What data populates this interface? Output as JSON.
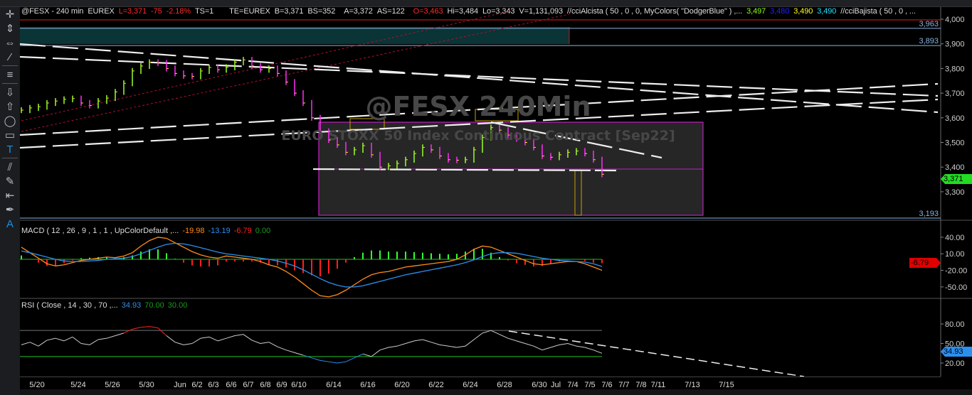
{
  "header": {
    "symbol": "@FESX - 240 min",
    "exchange": "EUREX",
    "last": "L=3,371",
    "change": "-75",
    "change_pct": "-2.18%",
    "ts": "TS=1",
    "te": "TE=EUREX",
    "bid": "B=3,371",
    "bid_size": "BS=352",
    "ask": "A=3,372",
    "ask_size": "AS=122",
    "open": "O=3,463",
    "high": "Hi=3,484",
    "low": "Lo=3,343",
    "volume": "V=1,131,093",
    "cci_alc": "//cciAlcista ( 50 , 0 , 0, MyColors( \"DodgerBlue\" ) ,...",
    "cci_v1": "3,497",
    "cci_v2": "3,480",
    "cci_v3": "3,490",
    "cci_v4": "3,490",
    "cci_baj": "//cciBajista ( 50 , 0 , ..."
  },
  "watermark": {
    "title": "@FESX 240Min",
    "subtitle": "EURO STOXX 50 Index Continuous Contract [Sep22]"
  },
  "toolbar": [
    {
      "icon": "crosshair-icon",
      "g": "✛"
    },
    {
      "icon": "vertical-resize-icon",
      "g": "⇕"
    },
    {
      "icon": "horizontal-resize-icon",
      "g": "⇔"
    },
    {
      "icon": "trendline-pen-icon",
      "g": "⁄"
    },
    {
      "sep": true
    },
    {
      "icon": "horizontal-lines-icon",
      "g": "≡"
    },
    {
      "sep": true
    },
    {
      "icon": "arrow-down-icon",
      "g": "⇩"
    },
    {
      "icon": "arrow-up-icon",
      "g": "⇧"
    },
    {
      "icon": "ellipse-icon",
      "g": "◯"
    },
    {
      "icon": "rectangle-icon",
      "g": "▭"
    },
    {
      "icon": "text-icon",
      "g": "T",
      "blue": true
    },
    {
      "sep": true
    },
    {
      "icon": "parallel-lines-icon",
      "g": "⫽"
    },
    {
      "icon": "delete-drawings-icon",
      "g": "✎"
    },
    {
      "icon": "align-left-icon",
      "g": "⇤"
    },
    {
      "icon": "pen-icon",
      "g": "✒"
    },
    {
      "icon": "text-label-icon",
      "g": "A",
      "blue": true
    }
  ],
  "colors": {
    "up": "#9aff2a",
    "down": "#ff2df5",
    "macd": "#ff8c1a",
    "signal": "#2b8ff0",
    "hist_up": "#33ff33",
    "hist_down": "#ff2020",
    "rsi": "#cccccc",
    "rsi_ob": "#ff2020",
    "rsi_os": "#2b8ff0",
    "last_tag": "#22dd22"
  },
  "chart_data": [
    {
      "type": "bar",
      "title": "",
      "ylim": [
        3150,
        4030
      ],
      "yticks": [
        "4,000",
        "3,900",
        "3,800",
        "3,700",
        "3,600",
        "3,500",
        "3,400",
        "3,300"
      ],
      "ytick_values": [
        4000,
        3900,
        3800,
        3700,
        3600,
        3500,
        3400,
        3300
      ],
      "levels": [
        {
          "label": "3,963",
          "value": 3963
        },
        {
          "label": "3,893",
          "value": 3893
        },
        {
          "label": "3,193",
          "value": 3193
        }
      ],
      "last_label": "3,371",
      "x_labels": [
        "5/20",
        "5/24",
        "5/26",
        "5/30",
        "Jun",
        "6/2",
        "6/3",
        "6/6",
        "6/7",
        "6/8",
        "6/9",
        "6/10",
        "6/14",
        "6/16",
        "6/20",
        "6/22",
        "6/24",
        "6/28",
        "6/30",
        "Jul",
        "7/4",
        "7/5",
        "7/6",
        "7/7",
        "7/8",
        "7/11",
        "7/13",
        "7/15"
      ],
      "close": [
        3631,
        3640,
        3645,
        3660,
        3668,
        3675,
        3678,
        3660,
        3650,
        3668,
        3680,
        3705,
        3740,
        3790,
        3810,
        3825,
        3822,
        3800,
        3780,
        3770,
        3768,
        3790,
        3804,
        3795,
        3805,
        3825,
        3835,
        3810,
        3795,
        3800,
        3780,
        3745,
        3700,
        3660,
        3600,
        3545,
        3510,
        3490,
        3460,
        3470,
        3487,
        3450,
        3400,
        3405,
        3415,
        3430,
        3455,
        3480,
        3470,
        3445,
        3430,
        3428,
        3430,
        3470,
        3520,
        3560,
        3550,
        3530,
        3515,
        3500,
        3480,
        3445,
        3440,
        3450,
        3460,
        3465,
        3455,
        3430,
        3371
      ]
    },
    {
      "type": "line",
      "title": "MACD ( 12 , 26 , 9 , 1 , 1 , UpColorDefault ,...",
      "values_text": [
        "-19.98",
        "-13.19",
        "-6.79",
        "0.00"
      ],
      "ylim": [
        -70,
        55
      ],
      "yticks": [
        "40.00",
        "10.00",
        "-20.00",
        "-50.00"
      ],
      "ytick_values": [
        40,
        10,
        -20,
        -50
      ],
      "last_label": "-6.79",
      "series": [
        {
          "values": [
            22,
            12,
            2,
            -8,
            -12,
            -10,
            -6,
            -2,
            0,
            2,
            4,
            3,
            6,
            12,
            24,
            34,
            40,
            38,
            30,
            22,
            14,
            8,
            4,
            2,
            6,
            4,
            2,
            0,
            -4,
            -10,
            -14,
            -22,
            -32,
            -44,
            -56,
            -66,
            -68,
            -64,
            -56,
            -46,
            -36,
            -28,
            -24,
            -22,
            -18,
            -14,
            -12,
            -10,
            -8,
            -6,
            -4,
            0,
            8,
            18,
            24,
            22,
            16,
            10,
            4,
            -2,
            -8,
            -10,
            -8,
            -6,
            -4,
            -4,
            -8,
            -14,
            -20
          ]
        },
        {
          "values": [
            15,
            12,
            8,
            4,
            0,
            -3,
            -4,
            -4,
            -3,
            -2,
            0,
            1,
            2,
            5,
            10,
            16,
            22,
            27,
            29,
            28,
            25,
            21,
            17,
            13,
            10,
            8,
            6,
            4,
            2,
            0,
            -3,
            -7,
            -12,
            -19,
            -27,
            -35,
            -42,
            -47,
            -50,
            -50,
            -48,
            -44,
            -40,
            -36,
            -32,
            -28,
            -25,
            -22,
            -19,
            -16,
            -13,
            -10,
            -6,
            -1,
            5,
            10,
            12,
            12,
            11,
            8,
            5,
            2,
            0,
            -2,
            -3,
            -4,
            -5,
            -8,
            -13
          ]
        }
      ]
    },
    {
      "type": "line",
      "title": "RSI ( Close , 14 , 30 , 70 ,...",
      "values_text": [
        "34.93",
        "70.00",
        "30.00"
      ],
      "ylim": [
        5,
        95
      ],
      "yticks": [
        "80.00",
        "50.00",
        "20.00"
      ],
      "ytick_values": [
        80,
        50,
        20
      ],
      "last_label": "34.93",
      "overbought": 70,
      "oversold": 30,
      "series": [
        {
          "values": [
            48,
            52,
            46,
            55,
            58,
            54,
            60,
            50,
            48,
            56,
            58,
            62,
            66,
            72,
            75,
            76,
            74,
            62,
            52,
            48,
            50,
            58,
            60,
            54,
            58,
            62,
            64,
            55,
            50,
            52,
            45,
            40,
            36,
            32,
            28,
            24,
            22,
            20,
            22,
            28,
            34,
            30,
            40,
            44,
            46,
            50,
            54,
            56,
            52,
            48,
            46,
            44,
            46,
            56,
            66,
            70,
            64,
            58,
            54,
            50,
            46,
            40,
            44,
            48,
            50,
            46,
            44,
            40,
            34.93
          ]
        }
      ]
    }
  ]
}
